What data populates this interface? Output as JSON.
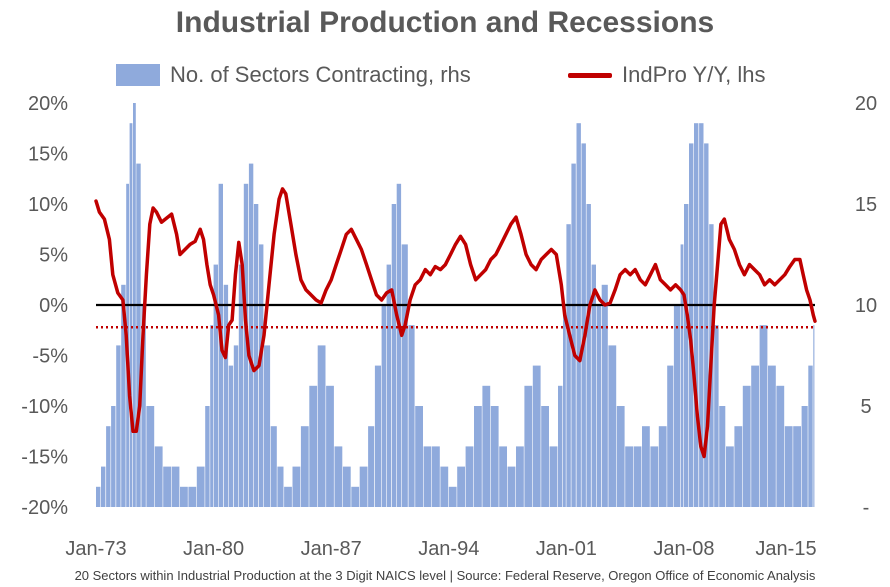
{
  "footnote": "20 Sectors within Industrial Production at the 3 Digit NAICS level | Source: Federal Reserve, Oregon Office of Economic Analysis",
  "colors": {
    "bars": "#8faadc",
    "line": "#c00000",
    "zero_line": "#000000",
    "dotted_line": "#c00000",
    "text": "#595959"
  },
  "chart_data": {
    "type": "bar+line",
    "title": "Industrial Production and Recessions",
    "legend_position": "top",
    "x_tick_labels": [
      "Jan-73",
      "Jan-80",
      "Jan-87",
      "Jan-94",
      "Jan-01",
      "Jan-08",
      "Jan-15"
    ],
    "x_tick_years": [
      1973,
      1980,
      1987,
      1994,
      2001,
      2008,
      2015
    ],
    "x_range": [
      1973.0,
      2015.8
    ],
    "left_axis": {
      "ticks": [
        "20%",
        "15%",
        "10%",
        "5%",
        "0%",
        "-5%",
        "-10%",
        "-15%",
        "-20%"
      ],
      "values": [
        20,
        15,
        10,
        5,
        0,
        -5,
        -10,
        -15,
        -20
      ],
      "range": [
        -20,
        20
      ]
    },
    "right_axis": {
      "ticks": [
        "20",
        "15",
        "10",
        "5",
        "-"
      ],
      "values": [
        20,
        15,
        10,
        5,
        0
      ],
      "range": [
        0,
        20
      ]
    },
    "grid": false,
    "reference_lines": [
      {
        "axis": "left",
        "value": 0,
        "style": "solid"
      },
      {
        "axis": "left",
        "value": -2.2,
        "style": "dotted"
      }
    ],
    "series": [
      {
        "name": "No. of Sectors Contracting, rhs",
        "type": "bar",
        "axis": "right",
        "points": [
          [
            1973.0,
            1
          ],
          [
            1973.3,
            2
          ],
          [
            1973.6,
            4
          ],
          [
            1973.9,
            5
          ],
          [
            1974.2,
            8
          ],
          [
            1974.5,
            11
          ],
          [
            1974.8,
            16
          ],
          [
            1975.0,
            19
          ],
          [
            1975.2,
            20
          ],
          [
            1975.4,
            17
          ],
          [
            1975.7,
            10
          ],
          [
            1976.0,
            5
          ],
          [
            1976.5,
            3
          ],
          [
            1977.0,
            2
          ],
          [
            1977.5,
            2
          ],
          [
            1978.0,
            1
          ],
          [
            1978.5,
            1
          ],
          [
            1979.0,
            2
          ],
          [
            1979.5,
            5
          ],
          [
            1979.8,
            9
          ],
          [
            1980.0,
            12
          ],
          [
            1980.3,
            16
          ],
          [
            1980.6,
            11
          ],
          [
            1980.9,
            7
          ],
          [
            1981.2,
            8
          ],
          [
            1981.5,
            12
          ],
          [
            1981.8,
            16
          ],
          [
            1982.1,
            17
          ],
          [
            1982.4,
            15
          ],
          [
            1982.7,
            13
          ],
          [
            1983.0,
            8
          ],
          [
            1983.4,
            4
          ],
          [
            1983.8,
            2
          ],
          [
            1984.2,
            1
          ],
          [
            1984.7,
            2
          ],
          [
            1985.2,
            4
          ],
          [
            1985.7,
            6
          ],
          [
            1986.2,
            8
          ],
          [
            1986.7,
            6
          ],
          [
            1987.2,
            3
          ],
          [
            1987.7,
            2
          ],
          [
            1988.2,
            1
          ],
          [
            1988.7,
            2
          ],
          [
            1989.2,
            4
          ],
          [
            1989.6,
            7
          ],
          [
            1990.0,
            10
          ],
          [
            1990.3,
            12
          ],
          [
            1990.6,
            15
          ],
          [
            1990.9,
            16
          ],
          [
            1991.2,
            13
          ],
          [
            1991.6,
            9
          ],
          [
            1992.0,
            5
          ],
          [
            1992.5,
            3
          ],
          [
            1993.0,
            3
          ],
          [
            1993.5,
            2
          ],
          [
            1994.0,
            1
          ],
          [
            1994.5,
            2
          ],
          [
            1995.0,
            3
          ],
          [
            1995.5,
            5
          ],
          [
            1996.0,
            6
          ],
          [
            1996.5,
            5
          ],
          [
            1997.0,
            3
          ],
          [
            1997.5,
            2
          ],
          [
            1998.0,
            3
          ],
          [
            1998.5,
            6
          ],
          [
            1999.0,
            7
          ],
          [
            1999.5,
            5
          ],
          [
            2000.0,
            3
          ],
          [
            2000.5,
            6
          ],
          [
            2000.8,
            10
          ],
          [
            2001.0,
            14
          ],
          [
            2001.3,
            17
          ],
          [
            2001.6,
            19
          ],
          [
            2001.9,
            18
          ],
          [
            2002.2,
            15
          ],
          [
            2002.5,
            12
          ],
          [
            2002.8,
            10
          ],
          [
            2003.1,
            11
          ],
          [
            2003.5,
            8
          ],
          [
            2004.0,
            5
          ],
          [
            2004.5,
            3
          ],
          [
            2005.0,
            3
          ],
          [
            2005.5,
            4
          ],
          [
            2006.0,
            3
          ],
          [
            2006.5,
            4
          ],
          [
            2007.0,
            7
          ],
          [
            2007.4,
            10
          ],
          [
            2007.8,
            13
          ],
          [
            2008.0,
            15
          ],
          [
            2008.3,
            18
          ],
          [
            2008.6,
            19
          ],
          [
            2008.9,
            19
          ],
          [
            2009.2,
            18
          ],
          [
            2009.5,
            14
          ],
          [
            2009.8,
            9
          ],
          [
            2010.1,
            5
          ],
          [
            2010.5,
            3
          ],
          [
            2011.0,
            4
          ],
          [
            2011.5,
            6
          ],
          [
            2012.0,
            7
          ],
          [
            2012.5,
            9
          ],
          [
            2013.0,
            7
          ],
          [
            2013.5,
            6
          ],
          [
            2014.0,
            4
          ],
          [
            2014.5,
            4
          ],
          [
            2015.0,
            5
          ],
          [
            2015.4,
            7
          ],
          [
            2015.7,
            9
          ]
        ]
      },
      {
        "name": "IndPro Y/Y, lhs",
        "type": "line",
        "axis": "left",
        "points": [
          [
            1973.0,
            10.3
          ],
          [
            1973.2,
            9.2
          ],
          [
            1973.5,
            8.5
          ],
          [
            1973.8,
            6.5
          ],
          [
            1974.0,
            3.0
          ],
          [
            1974.3,
            1.2
          ],
          [
            1974.6,
            0.5
          ],
          [
            1974.8,
            -3.0
          ],
          [
            1975.0,
            -9.0
          ],
          [
            1975.2,
            -12.5
          ],
          [
            1975.4,
            -12.5
          ],
          [
            1975.6,
            -10.0
          ],
          [
            1975.8,
            -3.0
          ],
          [
            1976.0,
            3.0
          ],
          [
            1976.2,
            8.0
          ],
          [
            1976.4,
            9.6
          ],
          [
            1976.6,
            9.2
          ],
          [
            1976.9,
            8.2
          ],
          [
            1977.2,
            8.6
          ],
          [
            1977.5,
            9.0
          ],
          [
            1977.8,
            7.0
          ],
          [
            1978.0,
            5.0
          ],
          [
            1978.3,
            5.5
          ],
          [
            1978.6,
            6.0
          ],
          [
            1978.9,
            6.3
          ],
          [
            1979.2,
            7.5
          ],
          [
            1979.4,
            6.5
          ],
          [
            1979.6,
            4.0
          ],
          [
            1979.8,
            2.0
          ],
          [
            1980.0,
            1.0
          ],
          [
            1980.3,
            -1.0
          ],
          [
            1980.5,
            -4.5
          ],
          [
            1980.7,
            -5.2
          ],
          [
            1980.9,
            -2.0
          ],
          [
            1981.1,
            -1.5
          ],
          [
            1981.3,
            3.0
          ],
          [
            1981.5,
            6.2
          ],
          [
            1981.7,
            4.0
          ],
          [
            1981.9,
            -1.5
          ],
          [
            1982.1,
            -5.0
          ],
          [
            1982.4,
            -6.5
          ],
          [
            1982.7,
            -6.0
          ],
          [
            1983.0,
            -3.0
          ],
          [
            1983.3,
            2.0
          ],
          [
            1983.6,
            7.0
          ],
          [
            1983.9,
            10.5
          ],
          [
            1984.1,
            11.5
          ],
          [
            1984.3,
            11.0
          ],
          [
            1984.6,
            8.0
          ],
          [
            1984.9,
            5.0
          ],
          [
            1985.2,
            2.5
          ],
          [
            1985.5,
            1.5
          ],
          [
            1985.8,
            1.0
          ],
          [
            1986.1,
            0.5
          ],
          [
            1986.4,
            0.2
          ],
          [
            1986.7,
            1.5
          ],
          [
            1987.0,
            2.5
          ],
          [
            1987.3,
            4.0
          ],
          [
            1987.6,
            5.5
          ],
          [
            1987.9,
            7.0
          ],
          [
            1988.2,
            7.5
          ],
          [
            1988.5,
            6.5
          ],
          [
            1988.8,
            5.5
          ],
          [
            1989.1,
            4.0
          ],
          [
            1989.4,
            2.5
          ],
          [
            1989.7,
            1.0
          ],
          [
            1990.0,
            0.5
          ],
          [
            1990.3,
            1.2
          ],
          [
            1990.6,
            1.5
          ],
          [
            1990.9,
            -1.0
          ],
          [
            1991.2,
            -3.0
          ],
          [
            1991.4,
            -2.0
          ],
          [
            1991.7,
            0.5
          ],
          [
            1992.0,
            2.0
          ],
          [
            1992.3,
            2.5
          ],
          [
            1992.6,
            3.5
          ],
          [
            1992.9,
            3.0
          ],
          [
            1993.2,
            3.8
          ],
          [
            1993.5,
            3.5
          ],
          [
            1993.8,
            4.0
          ],
          [
            1994.1,
            5.0
          ],
          [
            1994.4,
            6.0
          ],
          [
            1994.7,
            6.8
          ],
          [
            1995.0,
            6.0
          ],
          [
            1995.3,
            4.0
          ],
          [
            1995.6,
            2.5
          ],
          [
            1995.9,
            3.0
          ],
          [
            1996.2,
            3.5
          ],
          [
            1996.5,
            4.5
          ],
          [
            1996.8,
            5.0
          ],
          [
            1997.1,
            6.0
          ],
          [
            1997.4,
            7.0
          ],
          [
            1997.7,
            8.0
          ],
          [
            1998.0,
            8.7
          ],
          [
            1998.3,
            7.0
          ],
          [
            1998.6,
            5.0
          ],
          [
            1998.9,
            4.0
          ],
          [
            1999.2,
            3.5
          ],
          [
            1999.5,
            4.5
          ],
          [
            1999.8,
            5.0
          ],
          [
            2000.1,
            5.5
          ],
          [
            2000.4,
            5.0
          ],
          [
            2000.7,
            2.0
          ],
          [
            2000.9,
            -1.0
          ],
          [
            2001.2,
            -3.0
          ],
          [
            2001.5,
            -5.0
          ],
          [
            2001.8,
            -5.5
          ],
          [
            2002.1,
            -3.0
          ],
          [
            2002.4,
            0.0
          ],
          [
            2002.7,
            1.5
          ],
          [
            2003.0,
            0.5
          ],
          [
            2003.3,
            0.0
          ],
          [
            2003.6,
            0.2
          ],
          [
            2003.9,
            1.5
          ],
          [
            2004.2,
            3.0
          ],
          [
            2004.5,
            3.5
          ],
          [
            2004.8,
            3.0
          ],
          [
            2005.1,
            3.5
          ],
          [
            2005.4,
            2.5
          ],
          [
            2005.7,
            2.0
          ],
          [
            2006.0,
            3.0
          ],
          [
            2006.3,
            4.0
          ],
          [
            2006.6,
            2.5
          ],
          [
            2006.9,
            2.0
          ],
          [
            2007.2,
            1.5
          ],
          [
            2007.5,
            2.0
          ],
          [
            2007.8,
            1.5
          ],
          [
            2008.0,
            1.0
          ],
          [
            2008.2,
            -1.0
          ],
          [
            2008.4,
            -3.5
          ],
          [
            2008.6,
            -7.0
          ],
          [
            2008.8,
            -11.0
          ],
          [
            2009.0,
            -14.0
          ],
          [
            2009.2,
            -15.0
          ],
          [
            2009.4,
            -12.0
          ],
          [
            2009.6,
            -6.0
          ],
          [
            2009.8,
            0.0
          ],
          [
            2010.0,
            4.0
          ],
          [
            2010.2,
            8.0
          ],
          [
            2010.4,
            8.5
          ],
          [
            2010.7,
            6.5
          ],
          [
            2011.0,
            5.5
          ],
          [
            2011.3,
            4.0
          ],
          [
            2011.6,
            3.0
          ],
          [
            2011.9,
            4.0
          ],
          [
            2012.2,
            3.5
          ],
          [
            2012.5,
            3.0
          ],
          [
            2012.8,
            2.0
          ],
          [
            2013.1,
            2.5
          ],
          [
            2013.4,
            2.0
          ],
          [
            2013.7,
            2.5
          ],
          [
            2014.0,
            3.0
          ],
          [
            2014.3,
            3.8
          ],
          [
            2014.6,
            4.5
          ],
          [
            2014.9,
            4.5
          ],
          [
            2015.1,
            3.0
          ],
          [
            2015.3,
            1.5
          ],
          [
            2015.5,
            0.5
          ],
          [
            2015.7,
            -1.0
          ],
          [
            2015.8,
            -1.6
          ]
        ]
      }
    ]
  }
}
